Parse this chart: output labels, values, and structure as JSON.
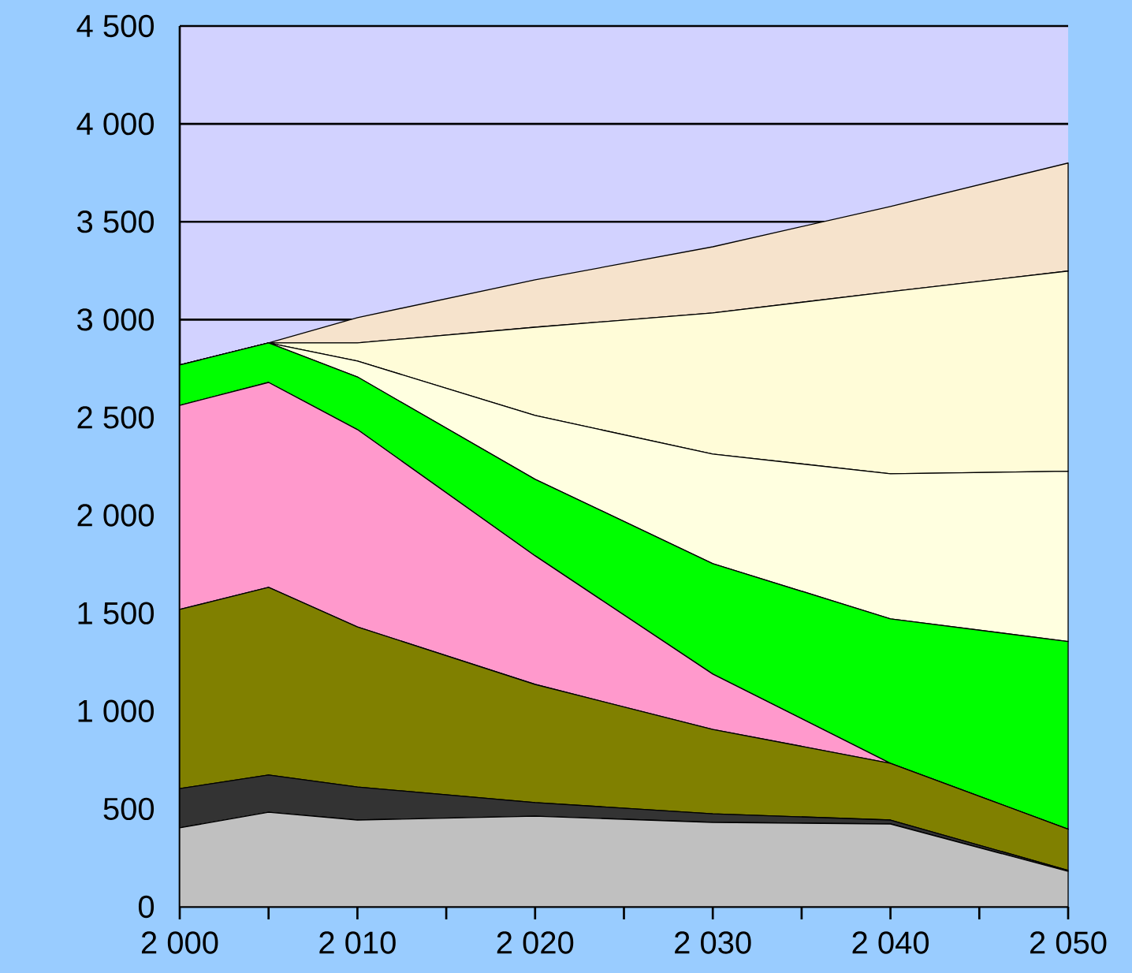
{
  "chart_data": {
    "type": "area",
    "stacked": true,
    "grid": "y",
    "x": [
      2000,
      2005,
      2010,
      2020,
      2030,
      2040,
      2050
    ],
    "xlim": [
      2000,
      2050
    ],
    "xticks": [
      {
        "value": 2000,
        "label": "2 000"
      },
      {
        "value": 2005,
        "label": null
      },
      {
        "value": 2010,
        "label": "2 010"
      },
      {
        "value": 2015,
        "label": null
      },
      {
        "value": 2020,
        "label": "2 020"
      },
      {
        "value": 2025,
        "label": null
      },
      {
        "value": 2030,
        "label": "2 030"
      },
      {
        "value": 2035,
        "label": null
      },
      {
        "value": 2040,
        "label": "2 040"
      },
      {
        "value": 2045,
        "label": null
      },
      {
        "value": 2050,
        "label": "2 050"
      }
    ],
    "ylim": [
      0,
      4500
    ],
    "yticks": [
      0,
      500,
      {
        "value": 1000,
        "label": "1 000"
      },
      {
        "value": 1500,
        "label": "1 500"
      },
      {
        "value": 2000,
        "label": "2 000"
      },
      {
        "value": 2500,
        "label": "2 500"
      },
      {
        "value": 3000,
        "label": "3 000"
      },
      {
        "value": 3500,
        "label": "3 500"
      },
      {
        "value": 4000,
        "label": "4 000"
      },
      {
        "value": 4500,
        "label": "4 500"
      }
    ],
    "series": [
      {
        "color": "#c0c0c0",
        "values": [
          403,
          483,
          443,
          463,
          431,
          423,
          181
        ]
      },
      {
        "color": "#333333",
        "values": [
          201,
          190,
          169,
          69,
          44,
          20,
          5
        ]
      },
      {
        "color": "#808000",
        "values": [
          915,
          959,
          818,
          604,
          431,
          290,
          210
        ]
      },
      {
        "color": "#ff99cc",
        "values": [
          1043,
          1047,
          1008,
          657,
          283,
          0,
          0
        ]
      },
      {
        "color": "#00ff00",
        "values": [
          206,
          202,
          269,
          391,
          564,
          738,
          959
        ]
      },
      {
        "color": "#ffffe0",
        "values": [
          0,
          0,
          81,
          326,
          560,
          741,
          870
        ]
      },
      {
        "color": "#fffcd8",
        "values": [
          0,
          0,
          93,
          451,
          721,
          931,
          1023
        ]
      },
      {
        "color": "#f6e3cc",
        "values": [
          0,
          0,
          129,
          242,
          338,
          435,
          552
        ]
      }
    ]
  }
}
